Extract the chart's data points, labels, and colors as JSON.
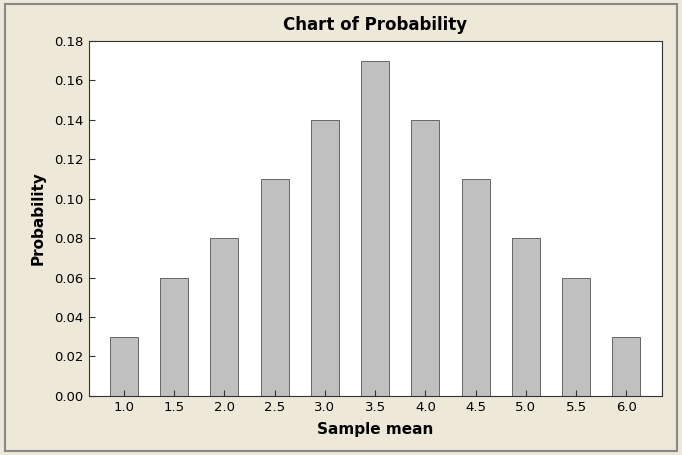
{
  "title": "Chart of Probability",
  "xlabel": "Sample mean",
  "ylabel": "Probability",
  "categories": [
    1.0,
    1.5,
    2.0,
    2.5,
    3.0,
    3.5,
    4.0,
    4.5,
    5.0,
    5.5,
    6.0
  ],
  "values": [
    0.03,
    0.06,
    0.08,
    0.11,
    0.14,
    0.17,
    0.14,
    0.11,
    0.08,
    0.06,
    0.03
  ],
  "bar_color": "#c0c0c0",
  "bar_edgecolor": "#666666",
  "ylim": [
    0,
    0.18
  ],
  "yticks": [
    0.0,
    0.02,
    0.04,
    0.06,
    0.08,
    0.1,
    0.12,
    0.14,
    0.16,
    0.18
  ],
  "background_outer": "#ede8d8",
  "background_plot": "#ffffff",
  "title_fontsize": 12,
  "label_fontsize": 11,
  "tick_fontsize": 9.5,
  "bar_width": 0.28,
  "xlim_left": 0.65,
  "xlim_right": 6.35
}
